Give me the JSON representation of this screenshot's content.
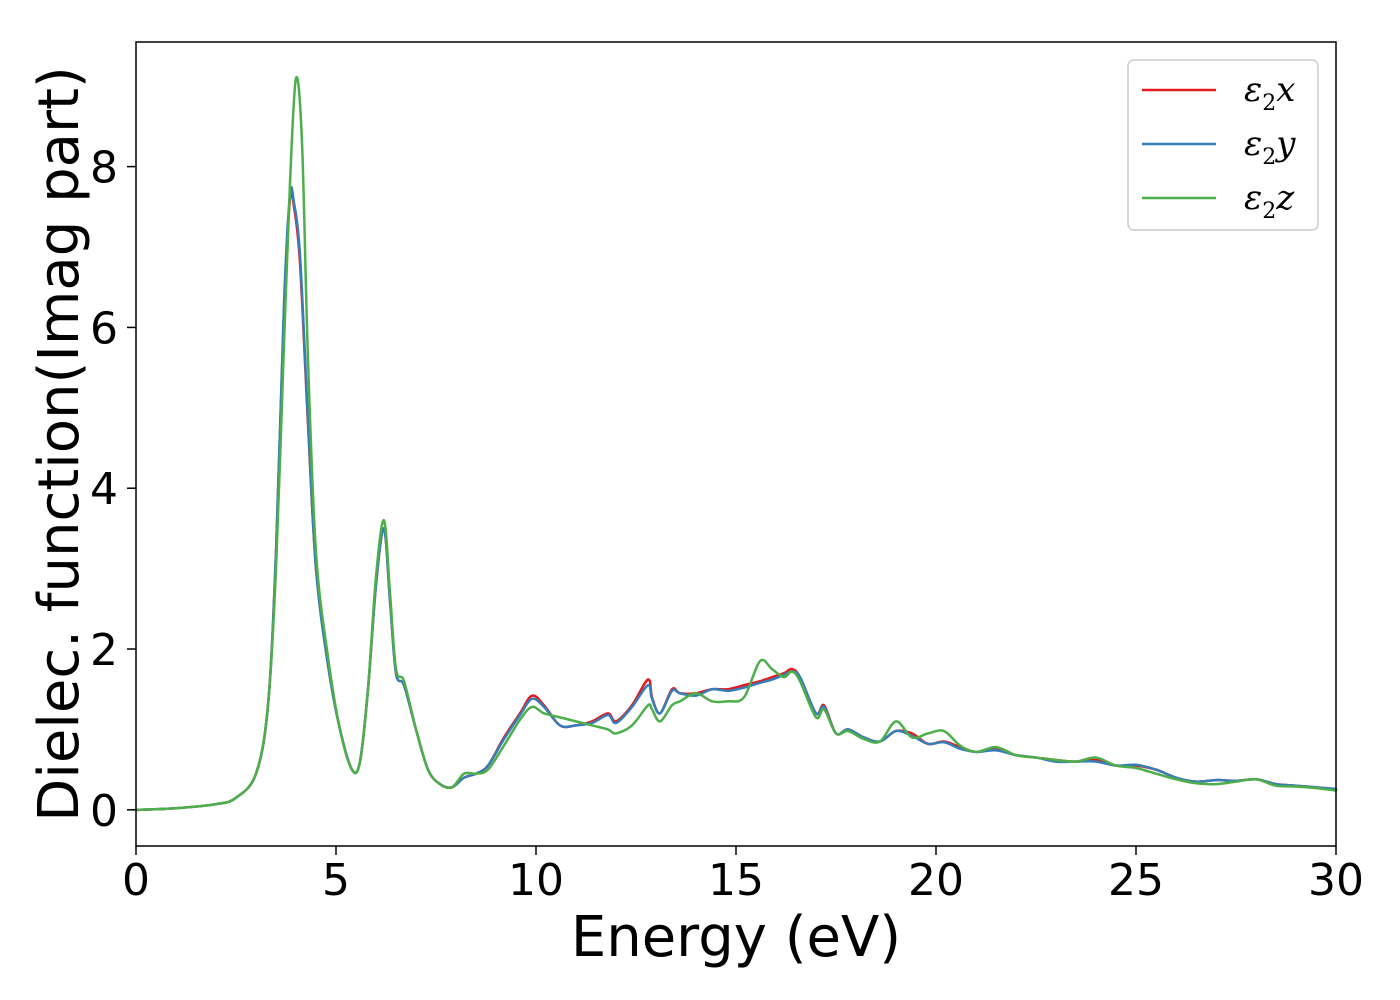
{
  "chart_data": {
    "type": "line",
    "title": "",
    "xlabel": "Energy (eV)",
    "ylabel": "Dielec. function(Imag part)",
    "xlim": [
      0,
      30
    ],
    "ylim": [
      -0.45,
      9.55
    ],
    "xticks": [
      0,
      5,
      10,
      15,
      20,
      25,
      30
    ],
    "xtick_labels": [
      "0",
      "5",
      "10",
      "15",
      "20",
      "25",
      "30"
    ],
    "yticks": [
      0,
      2,
      4,
      6,
      8
    ],
    "ytick_labels": [
      "0",
      "2",
      "4",
      "6",
      "8"
    ],
    "grid": false,
    "legend_position": "top-right",
    "series": [
      {
        "name": "ε₂x",
        "legend_base": "ε",
        "legend_sub": "2",
        "legend_tail": "x",
        "color": "#e41a1c",
        "x": [
          0,
          1,
          2,
          2.5,
          3,
          3.3,
          3.5,
          3.7,
          3.85,
          3.95,
          4.1,
          4.3,
          4.5,
          4.8,
          5.1,
          5.4,
          5.6,
          5.8,
          6.0,
          6.2,
          6.35,
          6.5,
          6.7,
          7.0,
          7.3,
          7.6,
          7.9,
          8.2,
          8.5,
          8.8,
          9.2,
          9.6,
          9.9,
          10.2,
          10.6,
          11.0,
          11.4,
          11.8,
          12.0,
          12.4,
          12.8,
          12.9,
          13.1,
          13.4,
          13.6,
          14.0,
          14.4,
          14.8,
          15.2,
          15.6,
          15.9,
          16.2,
          16.4,
          16.6,
          17.0,
          17.2,
          17.5,
          17.8,
          18.2,
          18.6,
          19.0,
          19.4,
          19.8,
          20.2,
          20.6,
          21.0,
          21.5,
          22.0,
          22.5,
          23.0,
          23.5,
          24.0,
          24.5,
          25.0,
          25.5,
          26.0,
          26.5,
          27.0,
          27.5,
          28.0,
          28.5,
          29.0,
          29.5,
          30.0
        ],
        "y": [
          0.0,
          0.02,
          0.07,
          0.15,
          0.45,
          1.3,
          3.2,
          6.2,
          7.6,
          7.5,
          6.8,
          4.8,
          3.0,
          1.8,
          1.0,
          0.5,
          0.6,
          1.5,
          2.8,
          3.5,
          2.6,
          1.7,
          1.55,
          1.0,
          0.5,
          0.32,
          0.28,
          0.4,
          0.45,
          0.55,
          0.9,
          1.2,
          1.42,
          1.3,
          1.05,
          1.05,
          1.1,
          1.2,
          1.1,
          1.3,
          1.62,
          1.4,
          1.2,
          1.5,
          1.45,
          1.45,
          1.5,
          1.5,
          1.55,
          1.6,
          1.65,
          1.7,
          1.75,
          1.65,
          1.2,
          1.3,
          0.95,
          1.0,
          0.9,
          0.85,
          0.98,
          0.95,
          0.82,
          0.85,
          0.78,
          0.72,
          0.75,
          0.68,
          0.65,
          0.62,
          0.6,
          0.62,
          0.55,
          0.55,
          0.5,
          0.4,
          0.35,
          0.37,
          0.36,
          0.38,
          0.32,
          0.3,
          0.28,
          0.25
        ]
      },
      {
        "name": "ε₂y",
        "legend_base": "ε",
        "legend_sub": "2",
        "legend_tail": "y",
        "color": "#377eb8",
        "x": [
          0,
          1,
          2,
          2.5,
          3,
          3.3,
          3.5,
          3.7,
          3.85,
          3.95,
          4.1,
          4.3,
          4.5,
          4.8,
          5.1,
          5.4,
          5.6,
          5.8,
          6.0,
          6.2,
          6.35,
          6.5,
          6.7,
          7.0,
          7.3,
          7.6,
          7.9,
          8.2,
          8.5,
          8.8,
          9.2,
          9.6,
          9.9,
          10.2,
          10.6,
          11.0,
          11.4,
          11.8,
          12.0,
          12.4,
          12.8,
          12.9,
          13.1,
          13.4,
          13.6,
          14.0,
          14.4,
          14.8,
          15.2,
          15.6,
          15.9,
          16.2,
          16.4,
          16.6,
          17.0,
          17.2,
          17.5,
          17.8,
          18.2,
          18.6,
          19.0,
          19.4,
          19.8,
          20.2,
          20.6,
          21.0,
          21.5,
          22.0,
          22.5,
          23.0,
          23.5,
          24.0,
          24.5,
          25.0,
          25.5,
          26.0,
          26.5,
          27.0,
          27.5,
          28.0,
          28.5,
          29.0,
          29.5,
          30.0
        ],
        "y": [
          0.0,
          0.02,
          0.07,
          0.15,
          0.45,
          1.3,
          3.2,
          6.3,
          7.65,
          7.55,
          6.9,
          4.85,
          3.0,
          1.8,
          1.0,
          0.5,
          0.6,
          1.5,
          2.8,
          3.5,
          2.6,
          1.7,
          1.55,
          1.0,
          0.5,
          0.32,
          0.28,
          0.4,
          0.45,
          0.55,
          0.88,
          1.18,
          1.38,
          1.28,
          1.05,
          1.05,
          1.08,
          1.18,
          1.08,
          1.28,
          1.55,
          1.38,
          1.2,
          1.48,
          1.45,
          1.42,
          1.5,
          1.48,
          1.52,
          1.58,
          1.62,
          1.68,
          1.72,
          1.65,
          1.2,
          1.28,
          0.95,
          1.0,
          0.9,
          0.85,
          0.98,
          0.92,
          0.82,
          0.84,
          0.76,
          0.72,
          0.74,
          0.68,
          0.65,
          0.6,
          0.6,
          0.6,
          0.55,
          0.56,
          0.5,
          0.4,
          0.35,
          0.37,
          0.36,
          0.38,
          0.32,
          0.3,
          0.28,
          0.26
        ]
      },
      {
        "name": "ε₂z",
        "legend_base": "ε",
        "legend_sub": "2",
        "legend_tail": "z",
        "color": "#4daf4a",
        "x": [
          0,
          1,
          2,
          2.5,
          3,
          3.3,
          3.5,
          3.7,
          3.85,
          4.0,
          4.15,
          4.3,
          4.5,
          4.8,
          5.1,
          5.4,
          5.6,
          5.8,
          6.0,
          6.2,
          6.35,
          6.5,
          6.7,
          7.0,
          7.3,
          7.6,
          7.9,
          8.2,
          8.5,
          8.8,
          9.2,
          9.6,
          9.9,
          10.2,
          10.6,
          11.0,
          11.4,
          11.8,
          12.0,
          12.4,
          12.8,
          12.9,
          13.1,
          13.4,
          13.6,
          14.0,
          14.4,
          14.8,
          15.2,
          15.6,
          15.9,
          16.2,
          16.4,
          16.6,
          17.0,
          17.2,
          17.5,
          17.8,
          18.2,
          18.6,
          19.0,
          19.4,
          19.8,
          20.2,
          20.6,
          21.0,
          21.5,
          22.0,
          22.5,
          23.0,
          23.5,
          24.0,
          24.5,
          25.0,
          25.5,
          26.0,
          26.5,
          27.0,
          27.5,
          28.0,
          28.5,
          29.0,
          29.5,
          30.0
        ],
        "y": [
          0.0,
          0.02,
          0.07,
          0.15,
          0.45,
          1.3,
          3.0,
          5.8,
          7.8,
          9.1,
          8.3,
          5.6,
          3.2,
          1.9,
          1.0,
          0.5,
          0.6,
          1.5,
          2.9,
          3.6,
          2.7,
          1.75,
          1.6,
          1.0,
          0.5,
          0.32,
          0.28,
          0.45,
          0.45,
          0.5,
          0.8,
          1.12,
          1.28,
          1.2,
          1.15,
          1.1,
          1.05,
          1.0,
          0.95,
          1.05,
          1.3,
          1.25,
          1.1,
          1.3,
          1.35,
          1.45,
          1.35,
          1.35,
          1.4,
          1.85,
          1.75,
          1.65,
          1.72,
          1.6,
          1.15,
          1.25,
          0.95,
          0.98,
          0.88,
          0.85,
          1.1,
          0.9,
          0.95,
          0.98,
          0.8,
          0.72,
          0.78,
          0.68,
          0.65,
          0.62,
          0.6,
          0.65,
          0.55,
          0.52,
          0.45,
          0.38,
          0.33,
          0.32,
          0.35,
          0.38,
          0.3,
          0.29,
          0.27,
          0.24
        ]
      }
    ]
  }
}
